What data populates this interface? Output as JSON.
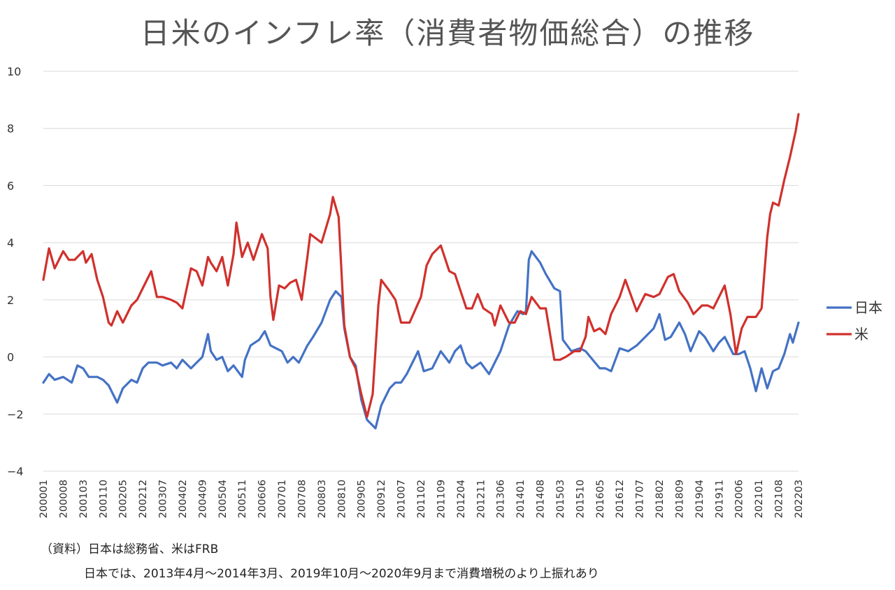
{
  "chart_data": {
    "type": "line",
    "title": "日米のインフレ率（消費者物価総合）の推移",
    "xlabel": "",
    "ylabel": "",
    "ylim": [
      -4,
      10
    ],
    "yticks": [
      "10",
      "8",
      "6",
      "4",
      "2",
      "0",
      "−2",
      "−4"
    ],
    "ytick_values": [
      10,
      8,
      6,
      4,
      2,
      0,
      -2,
      -4
    ],
    "x_range": [
      "200001",
      "202203"
    ],
    "xticks": [
      "200001",
      "200008",
      "200103",
      "200110",
      "200205",
      "200212",
      "200307",
      "200402",
      "200409",
      "200504",
      "200511",
      "200606",
      "200701",
      "200708",
      "200803",
      "200810",
      "200905",
      "200912",
      "201007",
      "201102",
      "201109",
      "201204",
      "201211",
      "201306",
      "201401",
      "201408",
      "201503",
      "201510",
      "201605",
      "201612",
      "201707",
      "201802",
      "201809",
      "201904",
      "201911",
      "202006",
      "202101",
      "202108",
      "202203"
    ],
    "legend_position": "right",
    "grid": true,
    "series": [
      {
        "name": "日本",
        "color": "#4472C4",
        "points": [
          [
            "200001",
            -0.9
          ],
          [
            "200003",
            -0.6
          ],
          [
            "200005",
            -0.8
          ],
          [
            "200008",
            -0.7
          ],
          [
            "200011",
            -0.9
          ],
          [
            "200101",
            -0.3
          ],
          [
            "200103",
            -0.4
          ],
          [
            "200105",
            -0.7
          ],
          [
            "200108",
            -0.7
          ],
          [
            "200110",
            -0.8
          ],
          [
            "200112",
            -1.0
          ],
          [
            "200203",
            -1.6
          ],
          [
            "200205",
            -1.1
          ],
          [
            "200208",
            -0.8
          ],
          [
            "200210",
            -0.9
          ],
          [
            "200212",
            -0.4
          ],
          [
            "200302",
            -0.2
          ],
          [
            "200305",
            -0.2
          ],
          [
            "200307",
            -0.3
          ],
          [
            "200310",
            -0.2
          ],
          [
            "200312",
            -0.4
          ],
          [
            "200402",
            -0.1
          ],
          [
            "200405",
            -0.4
          ],
          [
            "200407",
            -0.2
          ],
          [
            "200409",
            0.0
          ],
          [
            "200411",
            0.8
          ],
          [
            "200412",
            0.2
          ],
          [
            "200502",
            -0.1
          ],
          [
            "200504",
            0.0
          ],
          [
            "200506",
            -0.5
          ],
          [
            "200508",
            -0.3
          ],
          [
            "200511",
            -0.7
          ],
          [
            "200512",
            -0.1
          ],
          [
            "200602",
            0.4
          ],
          [
            "200605",
            0.6
          ],
          [
            "200607",
            0.9
          ],
          [
            "200609",
            0.4
          ],
          [
            "200701",
            0.2
          ],
          [
            "200703",
            -0.2
          ],
          [
            "200705",
            0.0
          ],
          [
            "200707",
            -0.2
          ],
          [
            "200710",
            0.4
          ],
          [
            "200712",
            0.7
          ],
          [
            "200803",
            1.2
          ],
          [
            "200806",
            2.0
          ],
          [
            "200808",
            2.3
          ],
          [
            "200810",
            2.1
          ],
          [
            "200811",
            1.0
          ],
          [
            "200901",
            0.0
          ],
          [
            "200903",
            -0.3
          ],
          [
            "200905",
            -1.5
          ],
          [
            "200907",
            -2.2
          ],
          [
            "200910",
            -2.5
          ],
          [
            "200912",
            -1.7
          ],
          [
            "201003",
            -1.1
          ],
          [
            "201005",
            -0.9
          ],
          [
            "201007",
            -0.9
          ],
          [
            "201009",
            -0.6
          ],
          [
            "201012",
            0.0
          ],
          [
            "201101",
            0.2
          ],
          [
            "201103",
            -0.5
          ],
          [
            "201106",
            -0.4
          ],
          [
            "201109",
            0.2
          ],
          [
            "201112",
            -0.2
          ],
          [
            "201202",
            0.2
          ],
          [
            "201204",
            0.4
          ],
          [
            "201206",
            -0.2
          ],
          [
            "201208",
            -0.4
          ],
          [
            "201211",
            -0.2
          ],
          [
            "201302",
            -0.6
          ],
          [
            "201306",
            0.2
          ],
          [
            "201309",
            1.1
          ],
          [
            "201312",
            1.6
          ],
          [
            "201402",
            1.5
          ],
          [
            "201403",
            1.6
          ],
          [
            "201404",
            3.4
          ],
          [
            "201405",
            3.7
          ],
          [
            "201408",
            3.3
          ],
          [
            "201410",
            2.9
          ],
          [
            "201501",
            2.4
          ],
          [
            "201503",
            2.3
          ],
          [
            "201504",
            0.6
          ],
          [
            "201507",
            0.2
          ],
          [
            "201510",
            0.3
          ],
          [
            "201512",
            0.2
          ],
          [
            "201605",
            -0.4
          ],
          [
            "201607",
            -0.4
          ],
          [
            "201609",
            -0.5
          ],
          [
            "201612",
            0.3
          ],
          [
            "201703",
            0.2
          ],
          [
            "201706",
            0.4
          ],
          [
            "201709",
            0.7
          ],
          [
            "201712",
            1.0
          ],
          [
            "201802",
            1.5
          ],
          [
            "201804",
            0.6
          ],
          [
            "201806",
            0.7
          ],
          [
            "201809",
            1.2
          ],
          [
            "201811",
            0.8
          ],
          [
            "201901",
            0.2
          ],
          [
            "201904",
            0.9
          ],
          [
            "201906",
            0.7
          ],
          [
            "201909",
            0.2
          ],
          [
            "201911",
            0.5
          ],
          [
            "202001",
            0.7
          ],
          [
            "202004",
            0.1
          ],
          [
            "202006",
            0.1
          ],
          [
            "202008",
            0.2
          ],
          [
            "202010",
            -0.4
          ],
          [
            "202012",
            -1.2
          ],
          [
            "202102",
            -0.4
          ],
          [
            "202104",
            -1.1
          ],
          [
            "202106",
            -0.5
          ],
          [
            "202108",
            -0.4
          ],
          [
            "202110",
            0.1
          ],
          [
            "202112",
            0.8
          ],
          [
            "202201",
            0.5
          ],
          [
            "202203",
            1.2
          ]
        ]
      },
      {
        "name": "米",
        "color": "#D0312D",
        "points": [
          [
            "200001",
            2.7
          ],
          [
            "200003",
            3.8
          ],
          [
            "200005",
            3.1
          ],
          [
            "200008",
            3.7
          ],
          [
            "200010",
            3.4
          ],
          [
            "200012",
            3.4
          ],
          [
            "200103",
            3.7
          ],
          [
            "200104",
            3.3
          ],
          [
            "200106",
            3.6
          ],
          [
            "200108",
            2.7
          ],
          [
            "200110",
            2.1
          ],
          [
            "200112",
            1.2
          ],
          [
            "200201",
            1.1
          ],
          [
            "200203",
            1.6
          ],
          [
            "200205",
            1.2
          ],
          [
            "200208",
            1.8
          ],
          [
            "200210",
            2.0
          ],
          [
            "200212",
            2.4
          ],
          [
            "200303",
            3.0
          ],
          [
            "200305",
            2.1
          ],
          [
            "200307",
            2.1
          ],
          [
            "200310",
            2.0
          ],
          [
            "200312",
            1.9
          ],
          [
            "200402",
            1.7
          ],
          [
            "200405",
            3.1
          ],
          [
            "200407",
            3.0
          ],
          [
            "200409",
            2.5
          ],
          [
            "200411",
            3.5
          ],
          [
            "200412",
            3.3
          ],
          [
            "200502",
            3.0
          ],
          [
            "200504",
            3.5
          ],
          [
            "200506",
            2.5
          ],
          [
            "200508",
            3.6
          ],
          [
            "200509",
            4.7
          ],
          [
            "200511",
            3.5
          ],
          [
            "200601",
            4.0
          ],
          [
            "200603",
            3.4
          ],
          [
            "200606",
            4.3
          ],
          [
            "200608",
            3.8
          ],
          [
            "200609",
            2.1
          ],
          [
            "200610",
            1.3
          ],
          [
            "200612",
            2.5
          ],
          [
            "200702",
            2.4
          ],
          [
            "200704",
            2.6
          ],
          [
            "200706",
            2.7
          ],
          [
            "200708",
            2.0
          ],
          [
            "200710",
            3.5
          ],
          [
            "200711",
            4.3
          ],
          [
            "200803",
            4.0
          ],
          [
            "200806",
            5.0
          ],
          [
            "200807",
            5.6
          ],
          [
            "200809",
            4.9
          ],
          [
            "200811",
            1.1
          ],
          [
            "200901",
            0.0
          ],
          [
            "200903",
            -0.4
          ],
          [
            "200905",
            -1.3
          ],
          [
            "200907",
            -2.1
          ],
          [
            "200909",
            -1.3
          ],
          [
            "200911",
            1.8
          ],
          [
            "200912",
            2.7
          ],
          [
            "201003",
            2.3
          ],
          [
            "201005",
            2.0
          ],
          [
            "201007",
            1.2
          ],
          [
            "201010",
            1.2
          ],
          [
            "201102",
            2.1
          ],
          [
            "201104",
            3.2
          ],
          [
            "201106",
            3.6
          ],
          [
            "201109",
            3.9
          ],
          [
            "201112",
            3.0
          ],
          [
            "201202",
            2.9
          ],
          [
            "201204",
            2.3
          ],
          [
            "201206",
            1.7
          ],
          [
            "201208",
            1.7
          ],
          [
            "201210",
            2.2
          ],
          [
            "201212",
            1.7
          ],
          [
            "201303",
            1.5
          ],
          [
            "201304",
            1.1
          ],
          [
            "201306",
            1.8
          ],
          [
            "201309",
            1.2
          ],
          [
            "201311",
            1.2
          ],
          [
            "201401",
            1.6
          ],
          [
            "201403",
            1.5
          ],
          [
            "201405",
            2.1
          ],
          [
            "201408",
            1.7
          ],
          [
            "201410",
            1.7
          ],
          [
            "201501",
            -0.1
          ],
          [
            "201503",
            -0.1
          ],
          [
            "201505",
            0.0
          ],
          [
            "201508",
            0.2
          ],
          [
            "201510",
            0.2
          ],
          [
            "201512",
            0.7
          ],
          [
            "201601",
            1.4
          ],
          [
            "201603",
            0.9
          ],
          [
            "201605",
            1.0
          ],
          [
            "201607",
            0.8
          ],
          [
            "201609",
            1.5
          ],
          [
            "201612",
            2.1
          ],
          [
            "201702",
            2.7
          ],
          [
            "201706",
            1.6
          ],
          [
            "201709",
            2.2
          ],
          [
            "201712",
            2.1
          ],
          [
            "201802",
            2.2
          ],
          [
            "201805",
            2.8
          ],
          [
            "201807",
            2.9
          ],
          [
            "201809",
            2.3
          ],
          [
            "201812",
            1.9
          ],
          [
            "201902",
            1.5
          ],
          [
            "201905",
            1.8
          ],
          [
            "201907",
            1.8
          ],
          [
            "201909",
            1.7
          ],
          [
            "201911",
            2.1
          ],
          [
            "202001",
            2.5
          ],
          [
            "202003",
            1.5
          ],
          [
            "202005",
            0.1
          ],
          [
            "202007",
            1.0
          ],
          [
            "202009",
            1.4
          ],
          [
            "202012",
            1.4
          ],
          [
            "202102",
            1.7
          ],
          [
            "202104",
            4.2
          ],
          [
            "202105",
            5.0
          ],
          [
            "202106",
            5.4
          ],
          [
            "202108",
            5.3
          ],
          [
            "202110",
            6.2
          ],
          [
            "202112",
            7.0
          ],
          [
            "202202",
            7.9
          ],
          [
            "202203",
            8.5
          ]
        ]
      }
    ],
    "notes": {
      "source": "（資料）日本は総務省、米はFRB",
      "tax": "日本では、2013年4月～2014年3月、2019年10月～2020年9月まで消費増税のより上振れあり"
    }
  }
}
